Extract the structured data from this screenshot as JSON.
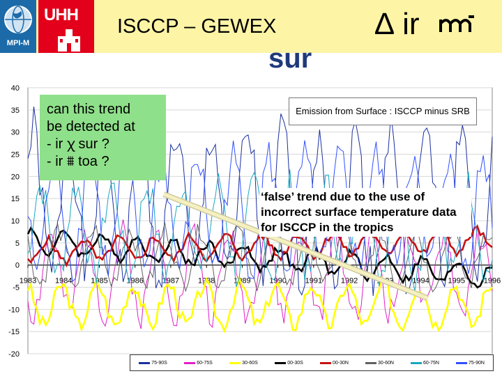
{
  "header": {
    "mpi_label": "MPI-M",
    "uhh_label": "UHH",
    "title": "ISCCP – GEWEX",
    "delta_ir": "∆ ir",
    "sur_label": "sur",
    "bg_color": "#fdf4a6",
    "mpi_color": "#1c6aa8",
    "uhh_color": "#e2001a"
  },
  "green_box": {
    "lines": [
      "can this trend",
      "be detected at",
      "- ir ꭓ sur ?",
      "- ir ⩩ toa ?"
    ]
  },
  "annotation": "‘false’ trend due to the use of incorrect surface temperature data for ISCCP in the tropics",
  "chart_data": {
    "type": "line",
    "title": "Emission from Surface : ISCCP minus SRB",
    "xlabel": "",
    "ylabel": "",
    "ylim": [
      -20,
      40
    ],
    "xlim": [
      1983,
      1996
    ],
    "yticks": [
      40,
      35,
      30,
      25,
      20,
      15,
      10,
      5,
      0,
      -5,
      -10,
      -15,
      -20
    ],
    "xticks": [
      "1983",
      "1984",
      "1985",
      "1986",
      "1987",
      "1988",
      "1989",
      "1990",
      "1991",
      "1992",
      "1993",
      "1994",
      "1995",
      "1996"
    ],
    "grid": true,
    "legend_position": "bottom",
    "series": [
      {
        "name": "75-90S",
        "color": "#1a2fa0",
        "mean": 14,
        "amp": 16,
        "phase": 0.1,
        "seed": 1
      },
      {
        "name": "60-75S",
        "color": "#e020c8",
        "mean": -2,
        "amp": 9,
        "phase": 0.6,
        "seed": 2
      },
      {
        "name": "30-60S",
        "color": "#ffff00",
        "mean": -9,
        "amp": 4.5,
        "phase": 0.3,
        "seed": 3
      },
      {
        "name": "00-30S",
        "color": "#000000",
        "mean": 5.5,
        "amp": 2.5,
        "phase": 0.2,
        "seed": 4,
        "trend": -0.6
      },
      {
        "name": "00-30N",
        "color": "#c81010",
        "mean": 3,
        "amp": 2.5,
        "phase": 0.7,
        "seed": 5,
        "trend": 0.2
      },
      {
        "name": "30-60N",
        "color": "#606060",
        "mean": 2,
        "amp": 6,
        "phase": 0.4,
        "seed": 6
      },
      {
        "name": "60-75N",
        "color": "#18a8c0",
        "mean": 8,
        "amp": 10,
        "phase": 0.9,
        "seed": 7
      },
      {
        "name": "75-90N",
        "color": "#3050ff",
        "mean": 12,
        "amp": 12,
        "phase": 0.5,
        "seed": 8
      }
    ],
    "trend_arrow": {
      "from": [
        1986.8,
        16
      ],
      "to": [
        1994.2,
        -7.5
      ],
      "color": "#f5f0c0"
    }
  }
}
